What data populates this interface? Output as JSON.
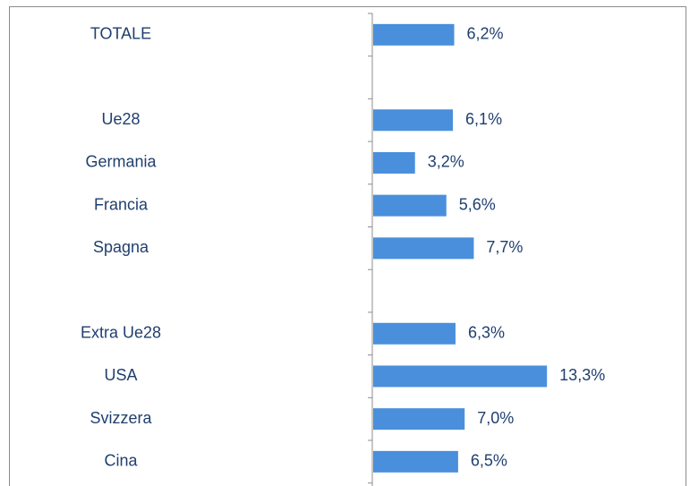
{
  "chart_data": {
    "type": "hbar",
    "categories": [
      "TOTALE",
      null,
      "Ue28",
      "Germania",
      "Francia",
      "Spagna",
      null,
      "Extra Ue28",
      "USA",
      "Svizzera",
      "Cina"
    ],
    "values": [
      6.2,
      null,
      6.1,
      3.2,
      5.6,
      7.7,
      null,
      6.3,
      13.3,
      7.0,
      6.5
    ],
    "value_labels": [
      "6,2%",
      null,
      "6,1%",
      "3,2%",
      "5,6%",
      "7,7%",
      null,
      "6,3%",
      "13,3%",
      "7,0%",
      "6,5%"
    ],
    "color": "#4a8fdc"
  }
}
